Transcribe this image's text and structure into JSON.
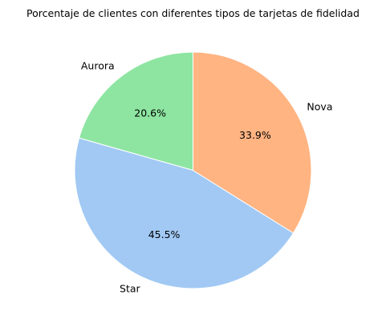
{
  "chart_data": {
    "type": "pie",
    "title": "Porcentaje de clientes con diferentes tipos de tarjetas de fidelidad",
    "start_angle_deg": 90,
    "direction": "counterclockwise",
    "slices": [
      {
        "label": "Aurora",
        "value": 20.6,
        "pct_label": "20.6%",
        "color": "#8de5a1"
      },
      {
        "label": "Star",
        "value": 45.5,
        "pct_label": "45.5%",
        "color": "#a1c9f4"
      },
      {
        "label": "Nova",
        "value": 33.9,
        "pct_label": "33.9%",
        "color": "#ffb482"
      }
    ]
  }
}
